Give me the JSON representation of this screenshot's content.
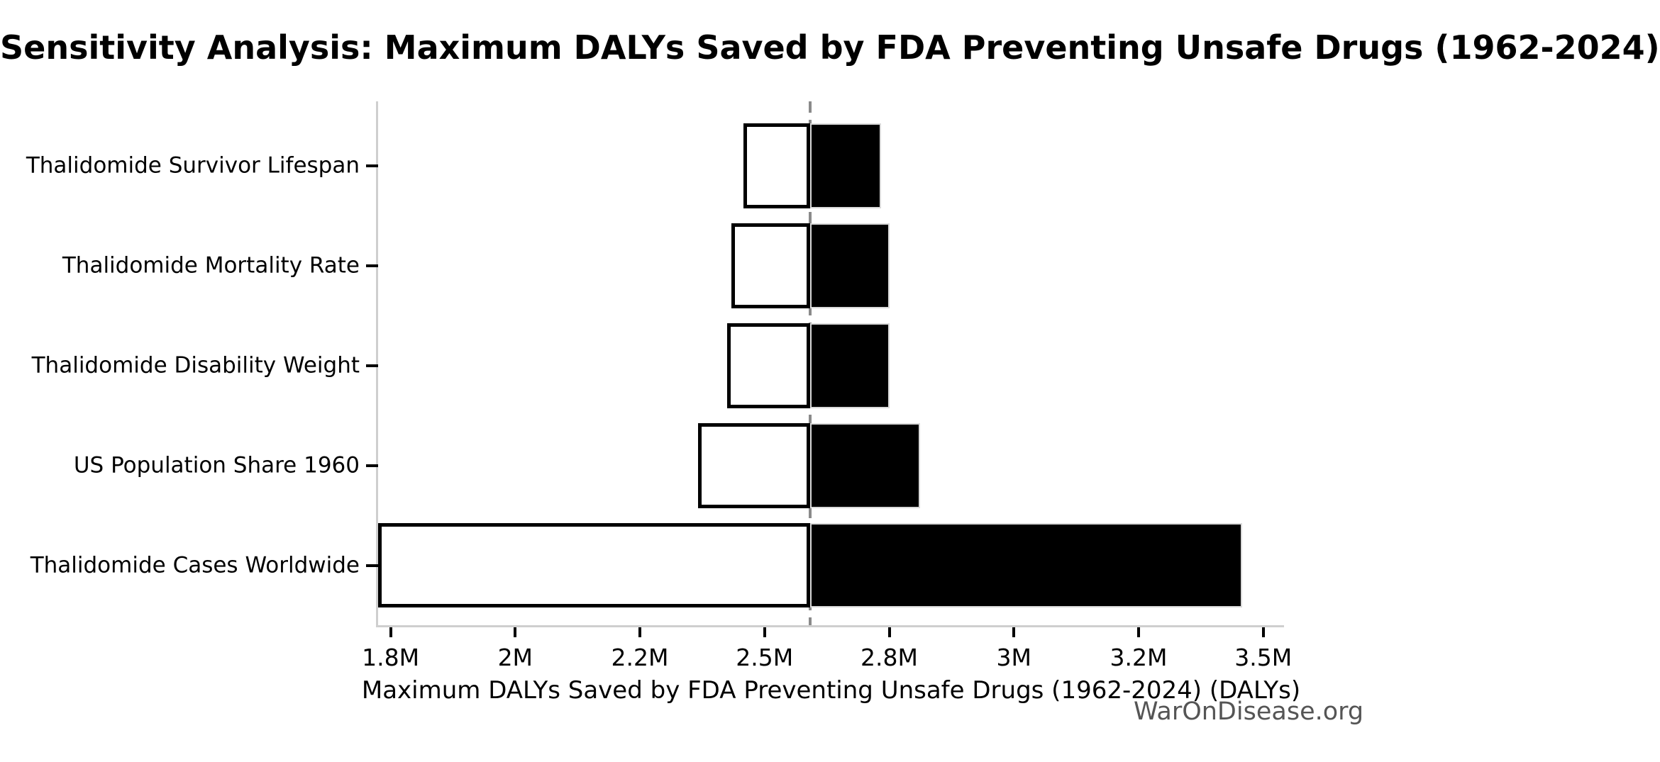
{
  "title": "Sensitivity Analysis: Maximum DALYs Saved by FDA Preventing Unsafe Drugs (1962-2024)",
  "watermark": "WarOnDisease.org",
  "chart_data": {
    "type": "bar",
    "subtype": "tornado-horizontal",
    "title": "Sensitivity Analysis: Maximum DALYs Saved by FDA Preventing Unsafe Drugs (1962-2024)",
    "xlabel": "Maximum DALYs Saved by FDA Preventing Unsafe Drugs (1962-2024) (DALYs)",
    "ylabel": "",
    "unit": "million DALYs",
    "categories": [
      "Thalidomide Survivor Lifespan",
      "Thalidomide Mortality Rate",
      "Thalidomide Disability Weight",
      "US Population Share 1960",
      "Thalidomide Cases Worldwide"
    ],
    "baseline_value": 2.61,
    "series": [
      {
        "name": "low",
        "fill": "#ffffff",
        "values": [
          2.45,
          2.42,
          2.41,
          2.34,
          1.78
        ]
      },
      {
        "name": "high",
        "fill": "#000000",
        "values": [
          2.78,
          2.8,
          2.8,
          2.85,
          3.45
        ]
      }
    ],
    "x_ticks": [
      {
        "value": 1.8,
        "label": "1.8M"
      },
      {
        "value": 2.0,
        "label": "2M"
      },
      {
        "value": 2.2,
        "label": "2.2M"
      },
      {
        "value": 2.5,
        "label": "2.5M"
      },
      {
        "value": 2.8,
        "label": "2.8M"
      },
      {
        "value": 3.0,
        "label": "3M"
      },
      {
        "value": 3.2,
        "label": "3.2M"
      },
      {
        "value": 3.5,
        "label": "3.5M"
      }
    ],
    "xlim": [
      1.78,
      3.55
    ],
    "axis_note": "x ticks are rendered at even pixel spacing; values interpolated piecewise between ticks",
    "grid": false,
    "legend": null,
    "colors": {
      "bar_low_fill": "#ffffff",
      "bar_high_fill": "#000000",
      "bar_low_edge": "#000000",
      "bar_high_edge": "#d9d9d9",
      "baseline_dash": "#8a8a8a",
      "spine": "#cfcfcf",
      "tick": "#000000",
      "watermark": "#555555"
    }
  }
}
